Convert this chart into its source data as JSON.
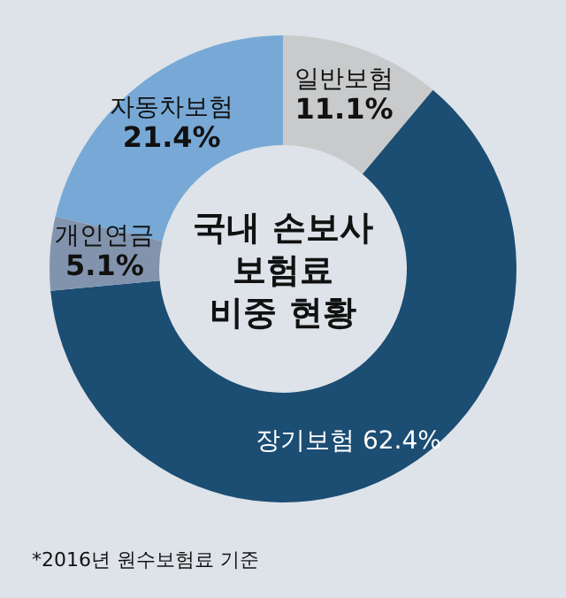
{
  "chart_data": {
    "type": "donut",
    "title": "국내 손보사\n보험료\n비중 현황",
    "categories": [
      "일반보험",
      "장기보험",
      "개인연금",
      "자동차보험"
    ],
    "values": [
      11.1,
      62.4,
      5.1,
      21.4
    ],
    "value_labels": [
      "11.1%",
      "62.4%",
      "5.1%",
      "21.4%"
    ],
    "colors": [
      "#c9cacb",
      "#1c4d73",
      "#8294ad",
      "#78a9d6"
    ],
    "annotations": [
      "*2016년 원수보험료 기준"
    ]
  }
}
